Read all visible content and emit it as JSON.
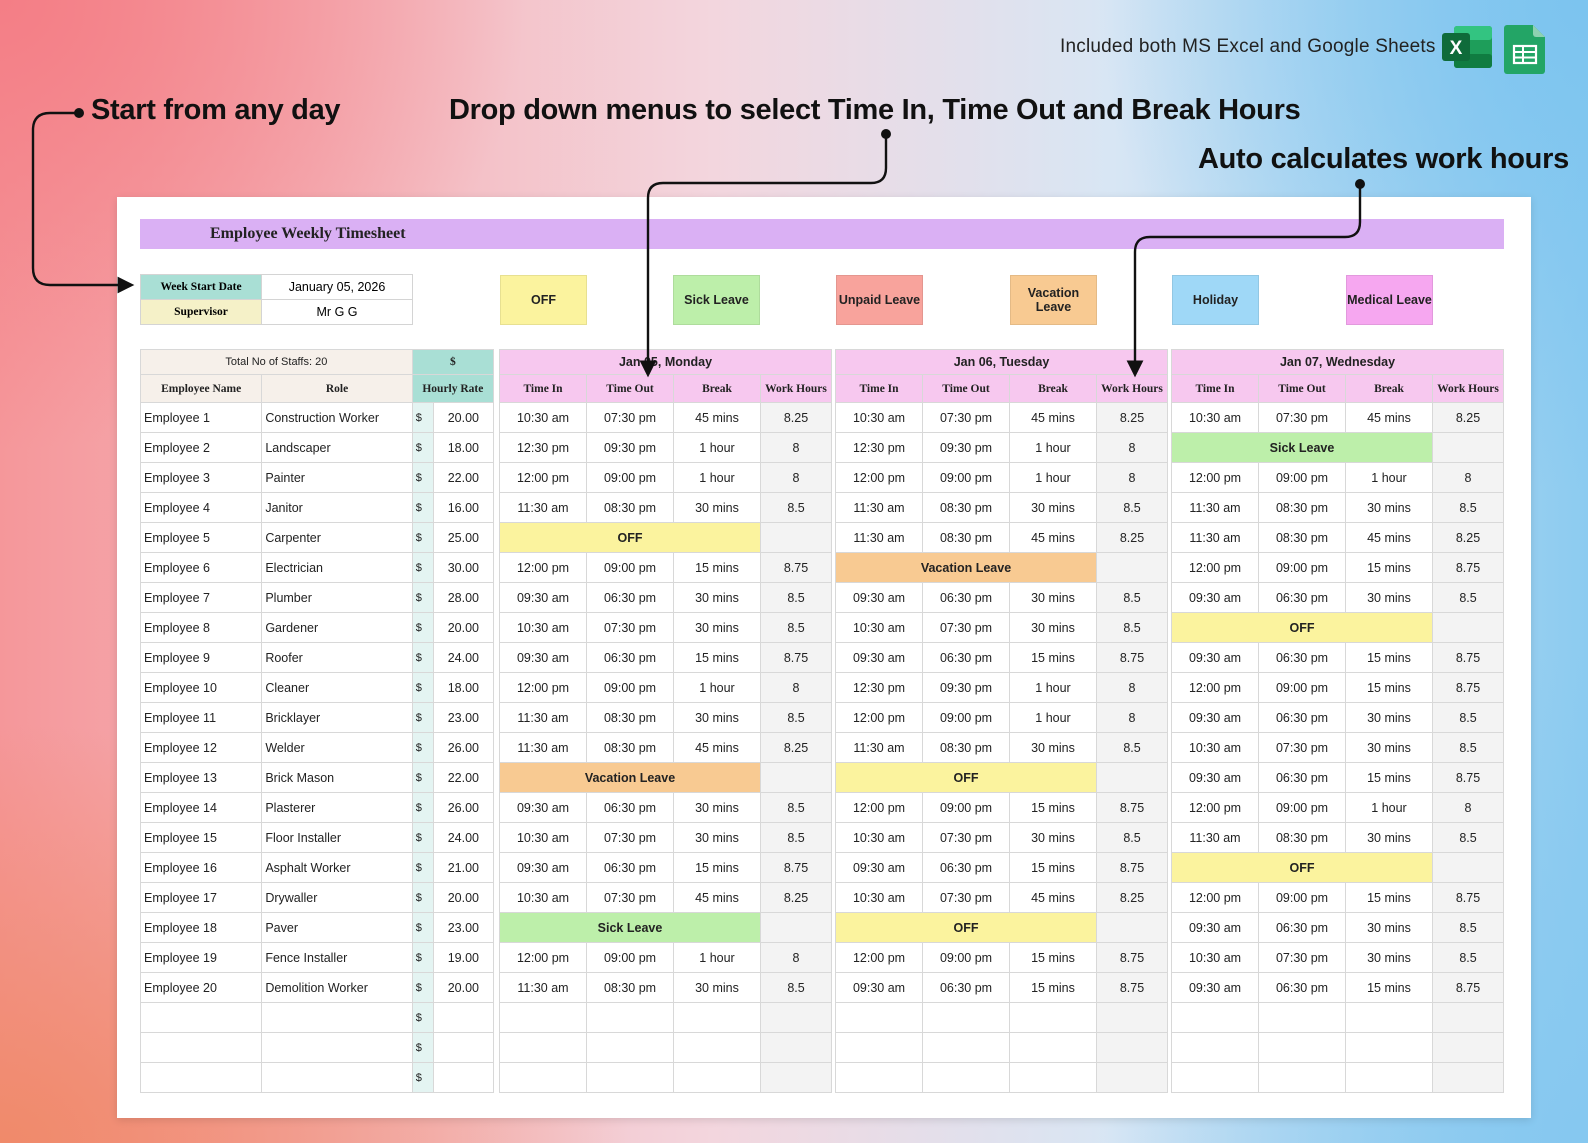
{
  "banner": {
    "note": "Included both MS Excel and Google Sheets",
    "excel_letter": "X"
  },
  "annotations": {
    "start": "Start from any day",
    "dropdown": "Drop down menus to select Time In, Time Out and Break Hours",
    "auto": "Auto calculates work hours"
  },
  "sheet": {
    "title": "Employee Weekly Timesheet",
    "week_start_label": "Week Start Date",
    "week_start_value": "January 05, 2026",
    "supervisor_label": "Supervisor",
    "supervisor_value": "Mr G G",
    "total_staff": "Total No of Staffs: 20",
    "currency_header": "$",
    "col_name": "Employee Name",
    "col_role": "Role",
    "col_rate": "Hourly Rate",
    "currency": "$"
  },
  "legend": [
    {
      "label": "OFF",
      "color": "#fbf39e"
    },
    {
      "label": "Sick Leave",
      "color": "#bdefaa"
    },
    {
      "label": "Unpaid Leave",
      "color": "#f8a39c"
    },
    {
      "label": "Vacation Leave",
      "color": "#f8ca92"
    },
    {
      "label": "Holiday",
      "color": "#9fd8f7"
    },
    {
      "label": "Medical Leave",
      "color": "#f6a7f0"
    }
  ],
  "day_columns": {
    "time_in": "Time In",
    "time_out": "Time Out",
    "break": "Break",
    "work_hours": "Work Hours"
  },
  "employees": [
    {
      "name": "Employee 1",
      "role": "Construction Worker",
      "rate": "20.00"
    },
    {
      "name": "Employee 2",
      "role": "Landscaper",
      "rate": "18.00"
    },
    {
      "name": "Employee 3",
      "role": "Painter",
      "rate": "22.00"
    },
    {
      "name": "Employee 4",
      "role": "Janitor",
      "rate": "16.00"
    },
    {
      "name": "Employee 5",
      "role": "Carpenter",
      "rate": "25.00"
    },
    {
      "name": "Employee 6",
      "role": "Electrician",
      "rate": "30.00"
    },
    {
      "name": "Employee 7",
      "role": "Plumber",
      "rate": "28.00"
    },
    {
      "name": "Employee 8",
      "role": "Gardener",
      "rate": "20.00"
    },
    {
      "name": "Employee 9",
      "role": "Roofer",
      "rate": "24.00"
    },
    {
      "name": "Employee 10",
      "role": "Cleaner",
      "rate": "18.00"
    },
    {
      "name": "Employee 11",
      "role": "Bricklayer",
      "rate": "23.00"
    },
    {
      "name": "Employee 12",
      "role": "Welder",
      "rate": "26.00"
    },
    {
      "name": "Employee 13",
      "role": "Brick Mason",
      "rate": "22.00"
    },
    {
      "name": "Employee 14",
      "role": "Plasterer",
      "rate": "26.00"
    },
    {
      "name": "Employee 15",
      "role": "Floor Installer",
      "rate": "24.00"
    },
    {
      "name": "Employee 16",
      "role": "Asphalt Worker",
      "rate": "21.00"
    },
    {
      "name": "Employee 17",
      "role": "Drywaller",
      "rate": "20.00"
    },
    {
      "name": "Employee 18",
      "role": "Paver",
      "rate": "23.00"
    },
    {
      "name": "Employee 19",
      "role": "Fence Installer",
      "rate": "19.00"
    },
    {
      "name": "Employee 20",
      "role": "Demolition Worker",
      "rate": "20.00"
    }
  ],
  "days": [
    {
      "title": "Jan 05,  Monday",
      "rows": [
        [
          "10:30 am",
          "07:30 pm",
          "45 mins",
          "8.25"
        ],
        [
          "12:30 pm",
          "09:30 pm",
          "1 hour",
          "8"
        ],
        [
          "12:00 pm",
          "09:00 pm",
          "1 hour",
          "8"
        ],
        [
          "11:30 am",
          "08:30 pm",
          "30 mins",
          "8.5"
        ],
        {
          "status": "OFF"
        },
        [
          "12:00 pm",
          "09:00 pm",
          "15 mins",
          "8.75"
        ],
        [
          "09:30 am",
          "06:30 pm",
          "30 mins",
          "8.5"
        ],
        [
          "10:30 am",
          "07:30 pm",
          "30 mins",
          "8.5"
        ],
        [
          "09:30 am",
          "06:30 pm",
          "15 mins",
          "8.75"
        ],
        [
          "12:00 pm",
          "09:00 pm",
          "1 hour",
          "8"
        ],
        [
          "11:30 am",
          "08:30 pm",
          "30 mins",
          "8.5"
        ],
        [
          "11:30 am",
          "08:30 pm",
          "45 mins",
          "8.25"
        ],
        {
          "status": "Vacation Leave"
        },
        [
          "09:30 am",
          "06:30 pm",
          "30 mins",
          "8.5"
        ],
        [
          "10:30 am",
          "07:30 pm",
          "30 mins",
          "8.5"
        ],
        [
          "09:30 am",
          "06:30 pm",
          "15 mins",
          "8.75"
        ],
        [
          "10:30 am",
          "07:30 pm",
          "45 mins",
          "8.25"
        ],
        {
          "status": "Sick Leave"
        },
        [
          "12:00 pm",
          "09:00 pm",
          "1 hour",
          "8"
        ],
        [
          "11:30 am",
          "08:30 pm",
          "30 mins",
          "8.5"
        ]
      ]
    },
    {
      "title": "Jan 06,  Tuesday",
      "rows": [
        [
          "10:30 am",
          "07:30 pm",
          "45 mins",
          "8.25"
        ],
        [
          "12:30 pm",
          "09:30 pm",
          "1 hour",
          "8"
        ],
        [
          "12:00 pm",
          "09:00 pm",
          "1 hour",
          "8"
        ],
        [
          "11:30 am",
          "08:30 pm",
          "30 mins",
          "8.5"
        ],
        [
          "11:30 am",
          "08:30 pm",
          "45 mins",
          "8.25"
        ],
        {
          "status": "Vacation Leave"
        },
        [
          "09:30 am",
          "06:30 pm",
          "30 mins",
          "8.5"
        ],
        [
          "10:30 am",
          "07:30 pm",
          "30 mins",
          "8.5"
        ],
        [
          "09:30 am",
          "06:30 pm",
          "15 mins",
          "8.75"
        ],
        [
          "12:30 pm",
          "09:30 pm",
          "1 hour",
          "8"
        ],
        [
          "12:00 pm",
          "09:00 pm",
          "1 hour",
          "8"
        ],
        [
          "11:30 am",
          "08:30 pm",
          "30 mins",
          "8.5"
        ],
        {
          "status": "OFF"
        },
        [
          "12:00 pm",
          "09:00 pm",
          "15 mins",
          "8.75"
        ],
        [
          "10:30 am",
          "07:30 pm",
          "30 mins",
          "8.5"
        ],
        [
          "09:30 am",
          "06:30 pm",
          "15 mins",
          "8.75"
        ],
        [
          "10:30 am",
          "07:30 pm",
          "45 mins",
          "8.25"
        ],
        {
          "status": "OFF"
        },
        [
          "12:00 pm",
          "09:00 pm",
          "15 mins",
          "8.75"
        ],
        [
          "09:30 am",
          "06:30 pm",
          "15 mins",
          "8.75"
        ]
      ]
    },
    {
      "title": "Jan 07,  Wednesday",
      "rows": [
        [
          "10:30 am",
          "07:30 pm",
          "45 mins",
          "8.25"
        ],
        {
          "status": "Sick Leave"
        },
        [
          "12:00 pm",
          "09:00 pm",
          "1 hour",
          "8"
        ],
        [
          "11:30 am",
          "08:30 pm",
          "30 mins",
          "8.5"
        ],
        [
          "11:30 am",
          "08:30 pm",
          "45 mins",
          "8.25"
        ],
        [
          "12:00 pm",
          "09:00 pm",
          "15 mins",
          "8.75"
        ],
        [
          "09:30 am",
          "06:30 pm",
          "30 mins",
          "8.5"
        ],
        {
          "status": "OFF"
        },
        [
          "09:30 am",
          "06:30 pm",
          "15 mins",
          "8.75"
        ],
        [
          "12:00 pm",
          "09:00 pm",
          "15 mins",
          "8.75"
        ],
        [
          "09:30 am",
          "06:30 pm",
          "30 mins",
          "8.5"
        ],
        [
          "10:30 am",
          "07:30 pm",
          "30 mins",
          "8.5"
        ],
        [
          "09:30 am",
          "06:30 pm",
          "15 mins",
          "8.75"
        ],
        [
          "12:00 pm",
          "09:00 pm",
          "1 hour",
          "8"
        ],
        [
          "11:30 am",
          "08:30 pm",
          "30 mins",
          "8.5"
        ],
        {
          "status": "OFF"
        },
        [
          "12:00 pm",
          "09:00 pm",
          "15 mins",
          "8.75"
        ],
        [
          "09:30 am",
          "06:30 pm",
          "30 mins",
          "8.5"
        ],
        [
          "10:30 am",
          "07:30 pm",
          "30 mins",
          "8.5"
        ],
        [
          "09:30 am",
          "06:30 pm",
          "15 mins",
          "8.75"
        ]
      ]
    }
  ]
}
